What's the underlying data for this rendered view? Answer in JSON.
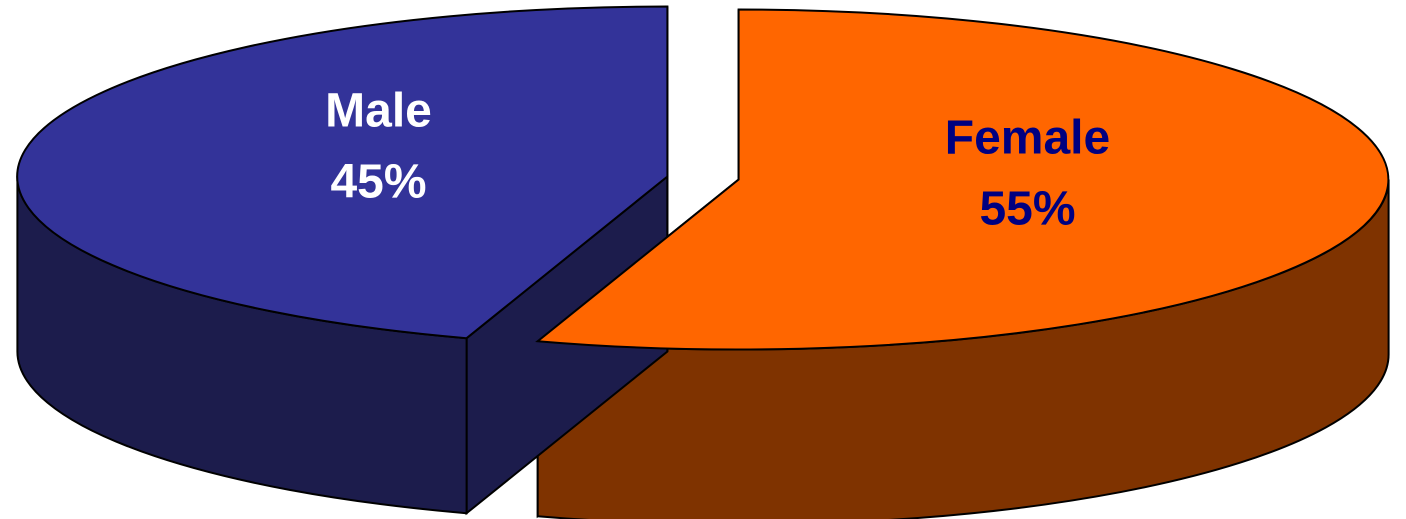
{
  "chart_data": {
    "type": "pie",
    "style": "3d-exploded",
    "slices": [
      {
        "name": "Female",
        "value": 55,
        "value_label": "55%",
        "top_color": "#FF6600",
        "side_color": "#7F3300",
        "label_color": "#000080"
      },
      {
        "name": "Male",
        "value": 45,
        "value_label": "45%",
        "top_color": "#333399",
        "side_color": "#1C1C4C",
        "label_color": "#FFFFFF"
      }
    ],
    "legend": "none"
  }
}
